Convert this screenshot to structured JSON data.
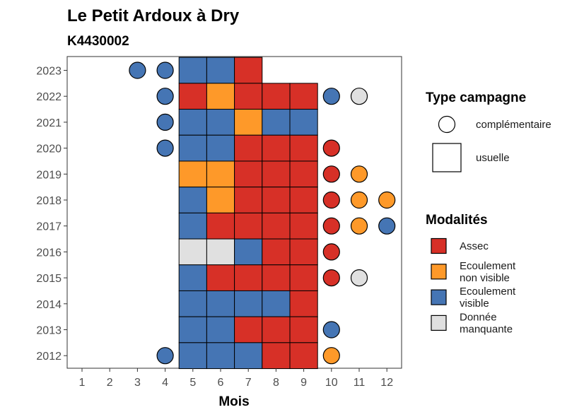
{
  "chart_data": {
    "type": "heatmap",
    "title": "Le Petit Ardoux à Dry",
    "subtitle": "K4430002",
    "xlabel": "Mois",
    "ylabel": "",
    "x_ticks": [
      1,
      2,
      3,
      4,
      5,
      6,
      7,
      8,
      9,
      10,
      11,
      12
    ],
    "y_ticks": [
      2023,
      2022,
      2021,
      2020,
      2019,
      2018,
      2017,
      2016,
      2015,
      2014,
      2013,
      2012
    ],
    "grid": false,
    "colors": {
      "Assec": "#d73027",
      "Ecoulement non visible": "#fe9929",
      "Ecoulement visible": "#4575b4",
      "Donnée manquante": "#e0e0e0"
    },
    "legend_shape": {
      "title": "Type campagne",
      "entries": [
        {
          "label": "complémentaire",
          "shape": "circle"
        },
        {
          "label": "usuelle",
          "shape": "square"
        }
      ]
    },
    "legend_modalites": {
      "title": "Modalités",
      "entries": [
        {
          "key": "Assec",
          "lines": [
            "Assec"
          ]
        },
        {
          "key": "Ecoulement non visible",
          "lines": [
            "Ecoulement",
            "non visible"
          ]
        },
        {
          "key": "Ecoulement visible",
          "lines": [
            "Ecoulement",
            "visible"
          ]
        },
        {
          "key": "Donnée manquante",
          "lines": [
            "Donnée",
            "manquante"
          ]
        }
      ]
    },
    "usuelle": [
      {
        "year": 2023,
        "month": 5,
        "value": "Ecoulement visible"
      },
      {
        "year": 2023,
        "month": 6,
        "value": "Ecoulement visible"
      },
      {
        "year": 2023,
        "month": 7,
        "value": "Assec"
      },
      {
        "year": 2022,
        "month": 5,
        "value": "Assec"
      },
      {
        "year": 2022,
        "month": 6,
        "value": "Ecoulement non visible"
      },
      {
        "year": 2022,
        "month": 7,
        "value": "Assec"
      },
      {
        "year": 2022,
        "month": 8,
        "value": "Assec"
      },
      {
        "year": 2022,
        "month": 9,
        "value": "Assec"
      },
      {
        "year": 2021,
        "month": 5,
        "value": "Ecoulement visible"
      },
      {
        "year": 2021,
        "month": 6,
        "value": "Ecoulement visible"
      },
      {
        "year": 2021,
        "month": 7,
        "value": "Ecoulement non visible"
      },
      {
        "year": 2021,
        "month": 8,
        "value": "Ecoulement visible"
      },
      {
        "year": 2021,
        "month": 9,
        "value": "Ecoulement visible"
      },
      {
        "year": 2020,
        "month": 5,
        "value": "Ecoulement visible"
      },
      {
        "year": 2020,
        "month": 6,
        "value": "Ecoulement visible"
      },
      {
        "year": 2020,
        "month": 7,
        "value": "Assec"
      },
      {
        "year": 2020,
        "month": 8,
        "value": "Assec"
      },
      {
        "year": 2020,
        "month": 9,
        "value": "Assec"
      },
      {
        "year": 2019,
        "month": 5,
        "value": "Ecoulement non visible"
      },
      {
        "year": 2019,
        "month": 6,
        "value": "Ecoulement non visible"
      },
      {
        "year": 2019,
        "month": 7,
        "value": "Assec"
      },
      {
        "year": 2019,
        "month": 8,
        "value": "Assec"
      },
      {
        "year": 2019,
        "month": 9,
        "value": "Assec"
      },
      {
        "year": 2018,
        "month": 5,
        "value": "Ecoulement visible"
      },
      {
        "year": 2018,
        "month": 6,
        "value": "Ecoulement non visible"
      },
      {
        "year": 2018,
        "month": 7,
        "value": "Assec"
      },
      {
        "year": 2018,
        "month": 8,
        "value": "Assec"
      },
      {
        "year": 2018,
        "month": 9,
        "value": "Assec"
      },
      {
        "year": 2017,
        "month": 5,
        "value": "Ecoulement visible"
      },
      {
        "year": 2017,
        "month": 6,
        "value": "Assec"
      },
      {
        "year": 2017,
        "month": 7,
        "value": "Assec"
      },
      {
        "year": 2017,
        "month": 8,
        "value": "Assec"
      },
      {
        "year": 2017,
        "month": 9,
        "value": "Assec"
      },
      {
        "year": 2016,
        "month": 5,
        "value": "Donnée manquante"
      },
      {
        "year": 2016,
        "month": 6,
        "value": "Donnée manquante"
      },
      {
        "year": 2016,
        "month": 7,
        "value": "Ecoulement visible"
      },
      {
        "year": 2016,
        "month": 8,
        "value": "Assec"
      },
      {
        "year": 2016,
        "month": 9,
        "value": "Assec"
      },
      {
        "year": 2015,
        "month": 5,
        "value": "Ecoulement visible"
      },
      {
        "year": 2015,
        "month": 6,
        "value": "Assec"
      },
      {
        "year": 2015,
        "month": 7,
        "value": "Assec"
      },
      {
        "year": 2015,
        "month": 8,
        "value": "Assec"
      },
      {
        "year": 2015,
        "month": 9,
        "value": "Assec"
      },
      {
        "year": 2014,
        "month": 5,
        "value": "Ecoulement visible"
      },
      {
        "year": 2014,
        "month": 6,
        "value": "Ecoulement visible"
      },
      {
        "year": 2014,
        "month": 7,
        "value": "Ecoulement visible"
      },
      {
        "year": 2014,
        "month": 8,
        "value": "Ecoulement visible"
      },
      {
        "year": 2014,
        "month": 9,
        "value": "Assec"
      },
      {
        "year": 2013,
        "month": 5,
        "value": "Ecoulement visible"
      },
      {
        "year": 2013,
        "month": 6,
        "value": "Ecoulement visible"
      },
      {
        "year": 2013,
        "month": 7,
        "value": "Assec"
      },
      {
        "year": 2013,
        "month": 8,
        "value": "Assec"
      },
      {
        "year": 2013,
        "month": 9,
        "value": "Assec"
      },
      {
        "year": 2012,
        "month": 5,
        "value": "Ecoulement visible"
      },
      {
        "year": 2012,
        "month": 6,
        "value": "Ecoulement visible"
      },
      {
        "year": 2012,
        "month": 7,
        "value": "Ecoulement visible"
      },
      {
        "year": 2012,
        "month": 8,
        "value": "Assec"
      },
      {
        "year": 2012,
        "month": 9,
        "value": "Assec"
      }
    ],
    "complementaire": [
      {
        "year": 2023,
        "month": 3,
        "value": "Ecoulement visible"
      },
      {
        "year": 2023,
        "month": 4,
        "value": "Ecoulement visible"
      },
      {
        "year": 2022,
        "month": 4,
        "value": "Ecoulement visible"
      },
      {
        "year": 2022,
        "month": 10,
        "value": "Ecoulement visible"
      },
      {
        "year": 2022,
        "month": 11,
        "value": "Donnée manquante"
      },
      {
        "year": 2021,
        "month": 4,
        "value": "Ecoulement visible"
      },
      {
        "year": 2020,
        "month": 4,
        "value": "Ecoulement visible"
      },
      {
        "year": 2020,
        "month": 10,
        "value": "Assec"
      },
      {
        "year": 2019,
        "month": 10,
        "value": "Assec"
      },
      {
        "year": 2019,
        "month": 11,
        "value": "Ecoulement non visible"
      },
      {
        "year": 2018,
        "month": 10,
        "value": "Assec"
      },
      {
        "year": 2018,
        "month": 11,
        "value": "Ecoulement non visible"
      },
      {
        "year": 2018,
        "month": 12,
        "value": "Ecoulement non visible"
      },
      {
        "year": 2017,
        "month": 10,
        "value": "Assec"
      },
      {
        "year": 2017,
        "month": 11,
        "value": "Ecoulement non visible"
      },
      {
        "year": 2017,
        "month": 12,
        "value": "Ecoulement visible"
      },
      {
        "year": 2016,
        "month": 10,
        "value": "Assec"
      },
      {
        "year": 2015,
        "month": 10,
        "value": "Assec"
      },
      {
        "year": 2015,
        "month": 11,
        "value": "Donnée manquante"
      },
      {
        "year": 2013,
        "month": 10,
        "value": "Ecoulement visible"
      },
      {
        "year": 2012,
        "month": 4,
        "value": "Ecoulement visible"
      },
      {
        "year": 2012,
        "month": 10,
        "value": "Ecoulement non visible"
      }
    ]
  }
}
